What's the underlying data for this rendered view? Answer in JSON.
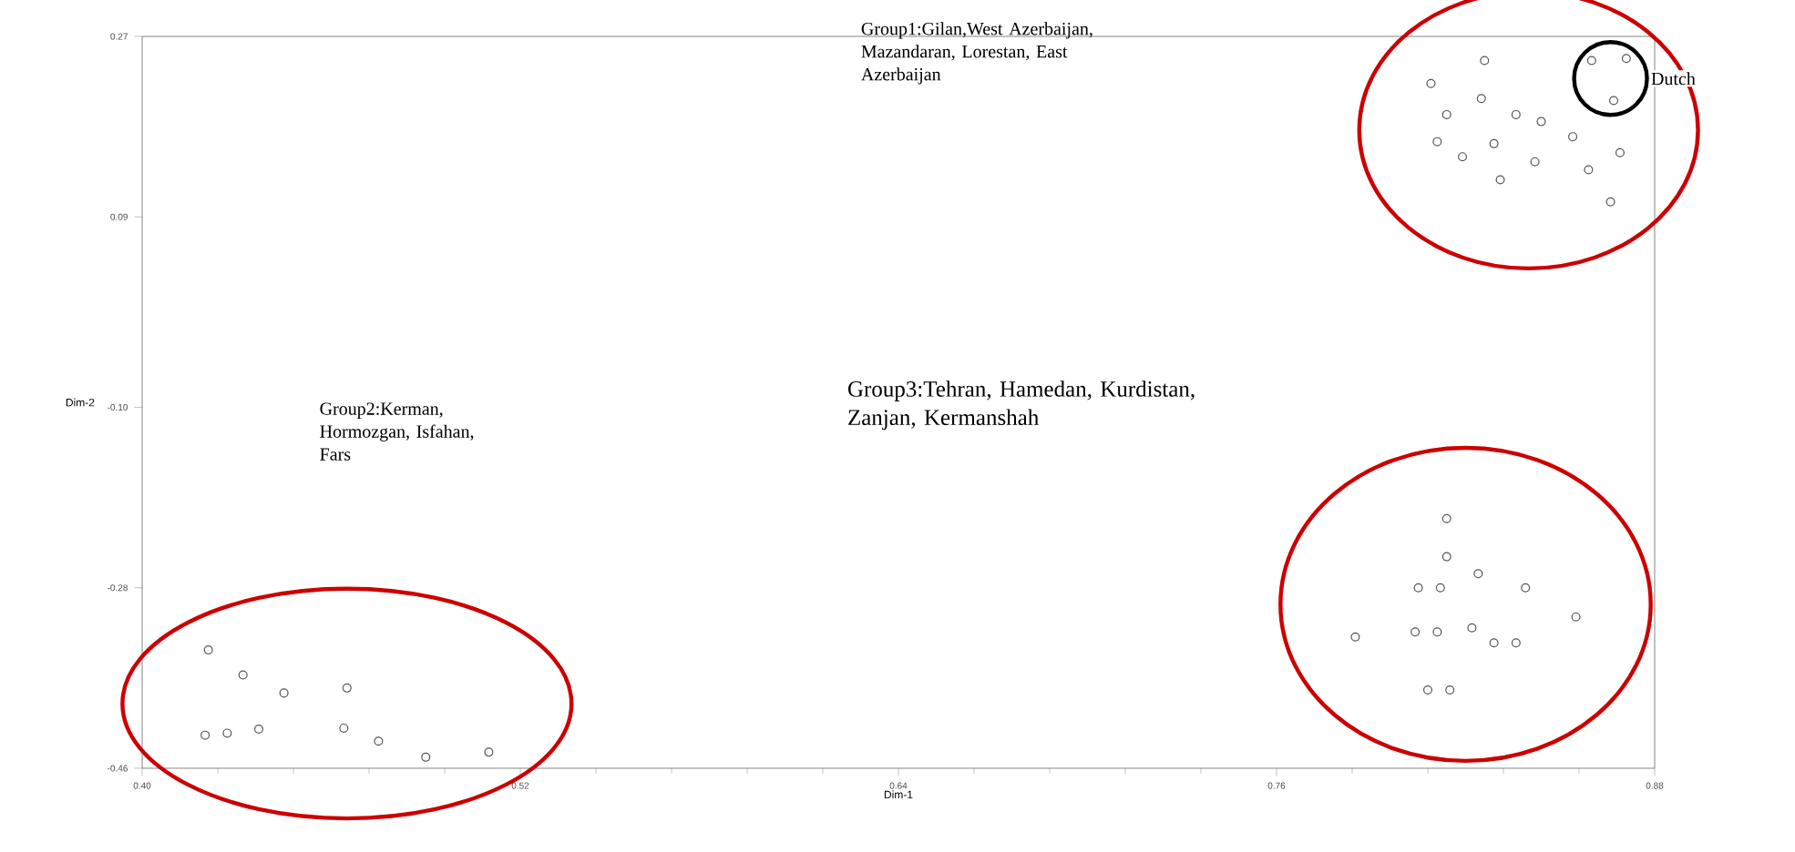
{
  "chart_data": {
    "type": "scatter",
    "xlabel": "Dim-1",
    "ylabel": "Dim-2",
    "xlim": [
      0.4,
      0.88
    ],
    "ylim": [
      -0.46,
      0.27
    ],
    "xticks": [
      {
        "value": 0.4,
        "label": "0.40"
      },
      0.52,
      0.64,
      0.76,
      0.88
    ],
    "yticks": [
      -0.46,
      -0.28,
      {
        "value": -0.1,
        "label": "-0.10"
      },
      0.09,
      0.27
    ],
    "marker": "circle",
    "grid": false,
    "series": [
      {
        "color": "#555555",
        "x": [
          0.826,
          0.809,
          0.825,
          0.86,
          0.871,
          0.867,
          0.814,
          0.836,
          0.844,
          0.811,
          0.829,
          0.854,
          0.869,
          0.819,
          0.842,
          0.859,
          0.831,
          0.866
        ],
        "values": [
          0.246,
          0.223,
          0.208,
          0.246,
          0.248,
          0.206,
          0.192,
          0.192,
          0.185,
          0.165,
          0.163,
          0.17,
          0.154,
          0.15,
          0.145,
          0.137,
          0.127,
          0.105
        ]
      },
      {
        "color": "#555555",
        "x": [
          0.421,
          0.432,
          0.445,
          0.465,
          0.42,
          0.427,
          0.437,
          0.464,
          0.475,
          0.49,
          0.51
        ],
        "values": [
          -0.342,
          -0.367,
          -0.385,
          -0.38,
          -0.427,
          -0.425,
          -0.421,
          -0.42,
          -0.433,
          -0.449,
          -0.444
        ]
      },
      {
        "color": "#555555",
        "x": [
          0.814,
          0.814,
          0.824,
          0.805,
          0.812,
          0.839,
          0.855,
          0.785,
          0.804,
          0.811,
          0.822,
          0.829,
          0.836,
          0.808,
          0.815
        ],
        "values": [
          -0.211,
          -0.249,
          -0.266,
          -0.28,
          -0.28,
          -0.28,
          -0.309,
          -0.329,
          -0.324,
          -0.324,
          -0.32,
          -0.335,
          -0.335,
          -0.382,
          -0.382
        ]
      }
    ],
    "annotations": [
      "Group1:Gilan,West Azerbaijan, Mazandaran, Lorestan, East Azerbaijan",
      {
        "text": "Dutch",
        "x": 0.866,
        "y": 0.228
      },
      "Group2:Kerman, Hormozgan, Isfahan, Fars",
      "Group3:Tehran, Hamedan, Kurdistan, Zanjan, Kermanshah"
    ]
  }
}
